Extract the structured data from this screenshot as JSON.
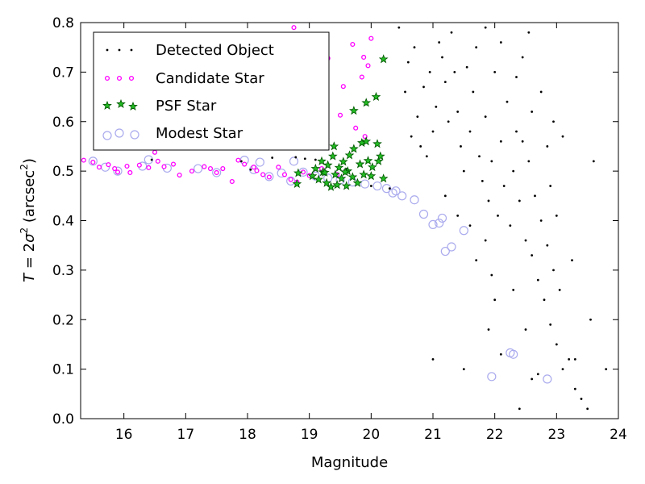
{
  "chart_data": {
    "type": "scatter",
    "xlabel": "Magnitude",
    "ylabel_parts": {
      "t": "T",
      "eq": " = 2",
      "sigma": "σ",
      "two": "2",
      "unit": " (arcsec",
      "unitsup": "2",
      "close": ")"
    },
    "xlim": [
      15.3,
      24.0
    ],
    "ylim": [
      0.0,
      0.8
    ],
    "xticks": [
      16,
      17,
      18,
      19,
      20,
      21,
      22,
      23,
      24
    ],
    "yticks": [
      0.0,
      0.1,
      0.2,
      0.3,
      0.4,
      0.5,
      0.6,
      0.7,
      0.8
    ],
    "legend_position": "top-left",
    "series": [
      {
        "name": "Detected Object",
        "marker": "dot",
        "color": "#000000",
        "points": [
          [
            16.45,
            0.523
          ],
          [
            17.9,
            0.52
          ],
          [
            18.05,
            0.503
          ],
          [
            18.4,
            0.527
          ],
          [
            18.78,
            0.528
          ],
          [
            18.93,
            0.525
          ],
          [
            19.1,
            0.523
          ],
          [
            19.6,
            0.504
          ],
          [
            20.0,
            0.47
          ],
          [
            20.3,
            0.465
          ],
          [
            20.45,
            0.79
          ],
          [
            20.6,
            0.72
          ],
          [
            20.75,
            0.61
          ],
          [
            20.85,
            0.67
          ],
          [
            20.95,
            0.7
          ],
          [
            20.7,
            0.75
          ],
          [
            20.8,
            0.55
          ],
          [
            21.0,
            0.58
          ],
          [
            21.05,
            0.63
          ],
          [
            21.15,
            0.73
          ],
          [
            21.1,
            0.76
          ],
          [
            21.2,
            0.68
          ],
          [
            21.25,
            0.6
          ],
          [
            21.3,
            0.78
          ],
          [
            21.35,
            0.7
          ],
          [
            21.4,
            0.62
          ],
          [
            21.45,
            0.55
          ],
          [
            21.5,
            0.5
          ],
          [
            21.55,
            0.71
          ],
          [
            21.6,
            0.58
          ],
          [
            21.65,
            0.66
          ],
          [
            21.7,
            0.75
          ],
          [
            21.75,
            0.53
          ],
          [
            21.8,
            0.48
          ],
          [
            21.85,
            0.61
          ],
          [
            21.9,
            0.44
          ],
          [
            21.95,
            0.52
          ],
          [
            22.0,
            0.7
          ],
          [
            22.05,
            0.41
          ],
          [
            22.1,
            0.56
          ],
          [
            22.15,
            0.47
          ],
          [
            22.2,
            0.64
          ],
          [
            22.25,
            0.39
          ],
          [
            22.3,
            0.5
          ],
          [
            22.35,
            0.58
          ],
          [
            22.4,
            0.44
          ],
          [
            22.45,
            0.73
          ],
          [
            22.5,
            0.36
          ],
          [
            22.55,
            0.52
          ],
          [
            22.6,
            0.33
          ],
          [
            22.65,
            0.45
          ],
          [
            22.7,
            0.28
          ],
          [
            22.75,
            0.4
          ],
          [
            22.8,
            0.24
          ],
          [
            22.85,
            0.35
          ],
          [
            22.9,
            0.19
          ],
          [
            22.95,
            0.3
          ],
          [
            23.0,
            0.15
          ],
          [
            23.05,
            0.26
          ],
          [
            23.1,
            0.1
          ],
          [
            23.2,
            0.12
          ],
          [
            23.3,
            0.06
          ],
          [
            23.4,
            0.04
          ],
          [
            23.5,
            0.02
          ],
          [
            23.6,
            0.52
          ],
          [
            23.8,
            0.1
          ],
          [
            23.55,
            0.2
          ],
          [
            23.25,
            0.32
          ],
          [
            22.1,
            0.13
          ],
          [
            21.9,
            0.18
          ],
          [
            21.5,
            0.1
          ],
          [
            21.0,
            0.12
          ],
          [
            22.4,
            0.02
          ],
          [
            22.6,
            0.08
          ],
          [
            22.7,
            0.09
          ],
          [
            23.3,
            0.12
          ],
          [
            22.5,
            0.18
          ],
          [
            21.7,
            0.32
          ],
          [
            22.9,
            0.47
          ],
          [
            23.0,
            0.41
          ],
          [
            20.55,
            0.66
          ],
          [
            20.65,
            0.57
          ],
          [
            20.9,
            0.53
          ],
          [
            21.2,
            0.45
          ],
          [
            21.4,
            0.41
          ],
          [
            21.6,
            0.39
          ],
          [
            21.85,
            0.36
          ],
          [
            22.3,
            0.26
          ],
          [
            22.0,
            0.24
          ],
          [
            21.95,
            0.29
          ],
          [
            22.45,
            0.56
          ],
          [
            22.6,
            0.62
          ],
          [
            22.75,
            0.66
          ],
          [
            22.85,
            0.55
          ],
          [
            22.95,
            0.6
          ],
          [
            23.1,
            0.57
          ],
          [
            22.35,
            0.69
          ],
          [
            22.1,
            0.76
          ],
          [
            21.85,
            0.79
          ],
          [
            22.55,
            0.78
          ]
        ]
      },
      {
        "name": "Candidate Star",
        "marker": "ring-dot",
        "color": "#ff00ff",
        "points": [
          [
            15.35,
            0.522
          ],
          [
            15.5,
            0.518
          ],
          [
            15.6,
            0.508
          ],
          [
            15.75,
            0.513
          ],
          [
            15.85,
            0.505
          ],
          [
            15.9,
            0.498
          ],
          [
            16.05,
            0.51
          ],
          [
            16.1,
            0.497
          ],
          [
            16.25,
            0.512
          ],
          [
            16.4,
            0.507
          ],
          [
            16.5,
            0.538
          ],
          [
            16.55,
            0.52
          ],
          [
            16.65,
            0.509
          ],
          [
            16.8,
            0.514
          ],
          [
            16.9,
            0.492
          ],
          [
            17.1,
            0.5
          ],
          [
            17.3,
            0.509
          ],
          [
            17.4,
            0.505
          ],
          [
            17.5,
            0.497
          ],
          [
            17.6,
            0.505
          ],
          [
            17.75,
            0.479
          ],
          [
            17.85,
            0.522
          ],
          [
            17.95,
            0.514
          ],
          [
            18.1,
            0.508
          ],
          [
            18.15,
            0.501
          ],
          [
            18.25,
            0.493
          ],
          [
            18.35,
            0.488
          ],
          [
            18.5,
            0.508
          ],
          [
            18.6,
            0.493
          ],
          [
            18.7,
            0.483
          ],
          [
            18.8,
            0.478
          ],
          [
            18.9,
            0.498
          ],
          [
            19.0,
            0.491
          ],
          [
            18.75,
            0.79
          ],
          [
            18.85,
            0.77
          ],
          [
            18.95,
            0.758
          ],
          [
            19.3,
            0.728
          ],
          [
            19.7,
            0.756
          ],
          [
            19.88,
            0.73
          ],
          [
            19.95,
            0.713
          ],
          [
            19.85,
            0.69
          ],
          [
            19.55,
            0.671
          ],
          [
            18.6,
            0.668
          ],
          [
            19.2,
            0.6
          ],
          [
            19.5,
            0.613
          ],
          [
            19.75,
            0.587
          ],
          [
            19.9,
            0.57
          ],
          [
            20.0,
            0.768
          ],
          [
            19.2,
            0.505
          ],
          [
            19.45,
            0.493
          ]
        ]
      },
      {
        "name": "PSF Star",
        "marker": "star",
        "color": "#00aa00",
        "points": [
          [
            18.8,
            0.474
          ],
          [
            18.82,
            0.496
          ],
          [
            19.05,
            0.49
          ],
          [
            19.1,
            0.505
          ],
          [
            19.15,
            0.483
          ],
          [
            19.2,
            0.52
          ],
          [
            19.22,
            0.498
          ],
          [
            19.28,
            0.476
          ],
          [
            19.3,
            0.512
          ],
          [
            19.35,
            0.468
          ],
          [
            19.38,
            0.53
          ],
          [
            19.4,
            0.55
          ],
          [
            19.42,
            0.493
          ],
          [
            19.45,
            0.472
          ],
          [
            19.48,
            0.507
          ],
          [
            19.52,
            0.485
          ],
          [
            19.55,
            0.519
          ],
          [
            19.6,
            0.47
          ],
          [
            19.62,
            0.5
          ],
          [
            19.65,
            0.532
          ],
          [
            19.7,
            0.488
          ],
          [
            19.72,
            0.545
          ],
          [
            19.78,
            0.476
          ],
          [
            19.82,
            0.514
          ],
          [
            19.85,
            0.557
          ],
          [
            19.88,
            0.493
          ],
          [
            19.92,
            0.56
          ],
          [
            19.95,
            0.521
          ],
          [
            20.0,
            0.49
          ],
          [
            20.02,
            0.508
          ],
          [
            20.1,
            0.555
          ],
          [
            20.12,
            0.52
          ],
          [
            20.15,
            0.53
          ],
          [
            20.2,
            0.485
          ],
          [
            19.72,
            0.622
          ],
          [
            19.92,
            0.638
          ],
          [
            20.08,
            0.65
          ],
          [
            20.2,
            0.726
          ],
          [
            19.25,
            0.497
          ],
          [
            19.58,
            0.498
          ]
        ]
      },
      {
        "name": "Modest Star",
        "marker": "open-circle",
        "color": "#aaaaee",
        "points": [
          [
            15.5,
            0.52
          ],
          [
            15.7,
            0.508
          ],
          [
            15.9,
            0.5
          ],
          [
            16.3,
            0.51
          ],
          [
            16.7,
            0.506
          ],
          [
            17.2,
            0.505
          ],
          [
            17.5,
            0.497
          ],
          [
            17.95,
            0.522
          ],
          [
            18.1,
            0.503
          ],
          [
            18.35,
            0.489
          ],
          [
            18.55,
            0.496
          ],
          [
            18.7,
            0.48
          ],
          [
            18.9,
            0.498
          ],
          [
            19.1,
            0.49
          ],
          [
            19.3,
            0.486
          ],
          [
            19.5,
            0.482
          ],
          [
            19.7,
            0.478
          ],
          [
            19.9,
            0.474
          ],
          [
            20.1,
            0.47
          ],
          [
            20.25,
            0.465
          ],
          [
            20.35,
            0.456
          ],
          [
            20.5,
            0.45
          ],
          [
            20.7,
            0.442
          ],
          [
            20.85,
            0.413
          ],
          [
            21.0,
            0.392
          ],
          [
            21.15,
            0.405
          ],
          [
            21.3,
            0.347
          ],
          [
            21.5,
            0.38
          ],
          [
            21.2,
            0.338
          ],
          [
            21.95,
            0.085
          ],
          [
            22.25,
            0.133
          ],
          [
            22.85,
            0.08
          ],
          [
            15.8,
            0.578
          ],
          [
            15.6,
            0.575
          ],
          [
            16.4,
            0.523
          ],
          [
            18.2,
            0.518
          ],
          [
            18.75,
            0.52
          ],
          [
            20.4,
            0.46
          ],
          [
            21.1,
            0.395
          ],
          [
            22.3,
            0.13
          ]
        ]
      }
    ]
  }
}
